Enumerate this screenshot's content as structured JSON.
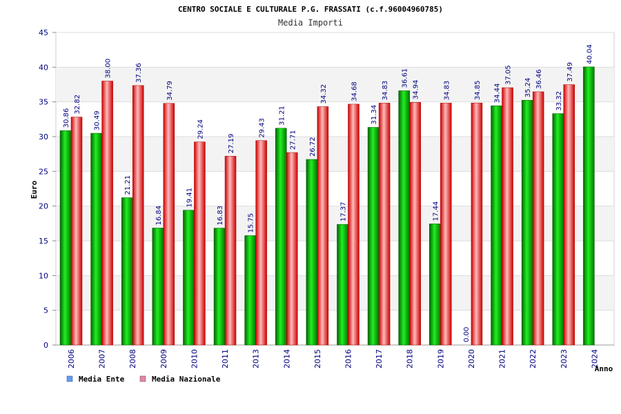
{
  "chart_data": {
    "type": "bar",
    "title": "CENTRO SOCIALE E CULTURALE P.G. FRASSATI (c.f.96004960785)",
    "subtitle": "Media Importi",
    "ylabel": "Euro",
    "xlabel": "Anno",
    "ylim": [
      0,
      45
    ],
    "yticks": [
      "0",
      "5",
      "10",
      "15",
      "20",
      "25",
      "30",
      "35",
      "40",
      "45"
    ],
    "categories": [
      "2006",
      "2007",
      "2008",
      "2009",
      "2010",
      "2011",
      "2013",
      "2014",
      "2015",
      "2016",
      "2017",
      "2018",
      "2019",
      "2020",
      "2021",
      "2022",
      "2023",
      "2024"
    ],
    "series": [
      {
        "name": "Media Ente",
        "color": "#00aa00",
        "values": [
          30.86,
          30.49,
          21.21,
          16.84,
          19.41,
          16.83,
          15.75,
          31.21,
          26.72,
          17.37,
          31.34,
          36.61,
          17.44,
          0.0,
          34.44,
          35.24,
          33.32,
          40.04
        ],
        "labels": [
          "30.86",
          "30.49",
          "21.21",
          "16.84",
          "19.41",
          "16.83",
          "15.75",
          "31.21",
          "26.72",
          "17.37",
          "31.34",
          "36.61",
          "17.44",
          "0.00",
          "34.44",
          "35.24",
          "33.32",
          "40.04"
        ]
      },
      {
        "name": "Media Nazionale",
        "color": "#dd2222",
        "values": [
          32.82,
          38.0,
          37.36,
          34.79,
          29.24,
          27.19,
          29.43,
          27.71,
          34.32,
          34.68,
          34.83,
          34.94,
          34.83,
          34.85,
          37.05,
          36.46,
          37.49,
          null
        ],
        "labels": [
          "32.82",
          "38.00",
          "37.36",
          "34.79",
          "29.24",
          "27.19",
          "29.43",
          "27.71",
          "34.32",
          "34.68",
          "34.83",
          "34.94",
          "34.83",
          "34.85",
          "37.05",
          "36.46",
          "37.49",
          null
        ]
      }
    ],
    "legend": [
      {
        "label": "Media Ente",
        "swatch": "#6699ee"
      },
      {
        "label": "Media Nazionale",
        "swatch": "#dd88aa"
      }
    ],
    "grid": true,
    "legend_position": "bottom-left"
  }
}
